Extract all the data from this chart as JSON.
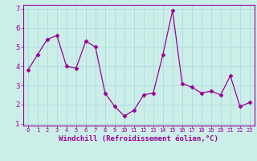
{
  "x": [
    0,
    1,
    2,
    3,
    4,
    5,
    6,
    7,
    8,
    9,
    10,
    11,
    12,
    13,
    14,
    15,
    16,
    17,
    18,
    19,
    20,
    21,
    22,
    23
  ],
  "y": [
    3.8,
    4.6,
    5.4,
    5.6,
    4.0,
    3.9,
    5.3,
    5.0,
    2.6,
    1.9,
    1.4,
    1.7,
    2.5,
    2.6,
    4.6,
    6.9,
    3.1,
    2.9,
    2.6,
    2.7,
    2.5,
    3.5,
    1.9,
    2.1
  ],
  "line_color": "#990099",
  "marker": "D",
  "marker_size": 2.5,
  "xlim": [
    -0.5,
    23.5
  ],
  "ylim": [
    0.9,
    7.2
  ],
  "yticks": [
    1,
    2,
    3,
    4,
    5,
    6,
    7
  ],
  "xticks": [
    0,
    1,
    2,
    3,
    4,
    5,
    6,
    7,
    8,
    9,
    10,
    11,
    12,
    13,
    14,
    15,
    16,
    17,
    18,
    19,
    20,
    21,
    22,
    23
  ],
  "xlabel": "Windchill (Refroidissement éolien,°C)",
  "background_color": "#cceee8",
  "grid_color": "#aadddd",
  "label_color": "#990099",
  "tick_label_color": "#990099",
  "xlabel_fontsize": 6.5,
  "xtick_fontsize": 5.0,
  "ytick_fontsize": 6.5
}
